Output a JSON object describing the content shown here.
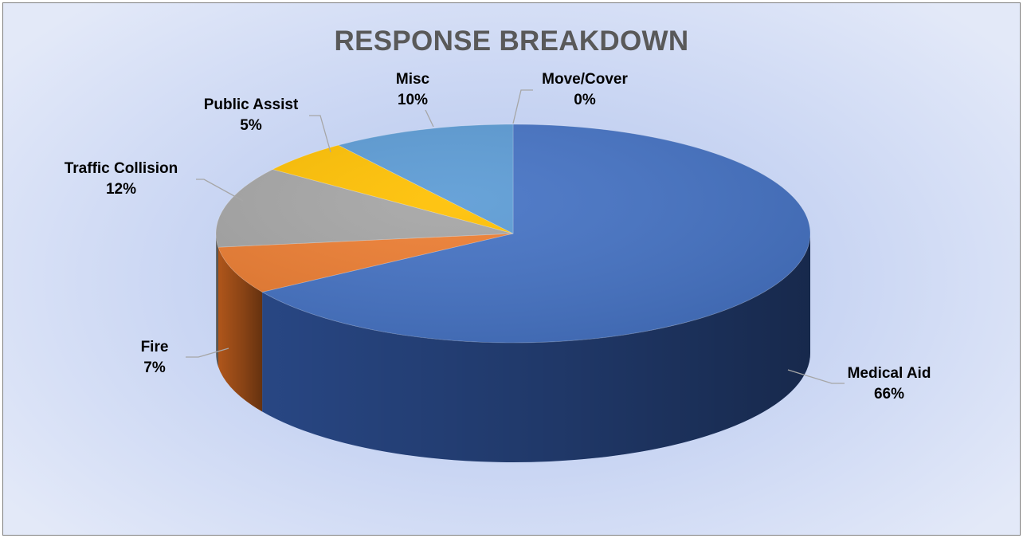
{
  "chart_data": {
    "type": "pie",
    "style": "3d",
    "title": "RESPONSE BREAKDOWN",
    "legend": "none",
    "slices": [
      {
        "name": "Medical Aid",
        "value": 66,
        "label": "66%",
        "color": "#4472c4",
        "side_color": "#2a4a8a"
      },
      {
        "name": "Fire",
        "value": 7,
        "label": "7%",
        "color": "#ed7d31",
        "side_color": "#b85a1c"
      },
      {
        "name": "Traffic Collision",
        "value": 12,
        "label": "12%",
        "color": "#a5a5a5",
        "side_color": "#7a7a7a"
      },
      {
        "name": "Public Assist",
        "value": 5,
        "label": "5%",
        "color": "#ffc000",
        "side_color": "#c79200"
      },
      {
        "name": "Misc",
        "value": 10,
        "label": "10%",
        "color": "#5b9bd5",
        "side_color": "#3f74a6"
      },
      {
        "name": "Move/Cover",
        "value": 0,
        "label": "0%",
        "color": "#70ad47",
        "side_color": "#4f7d31"
      }
    ]
  }
}
